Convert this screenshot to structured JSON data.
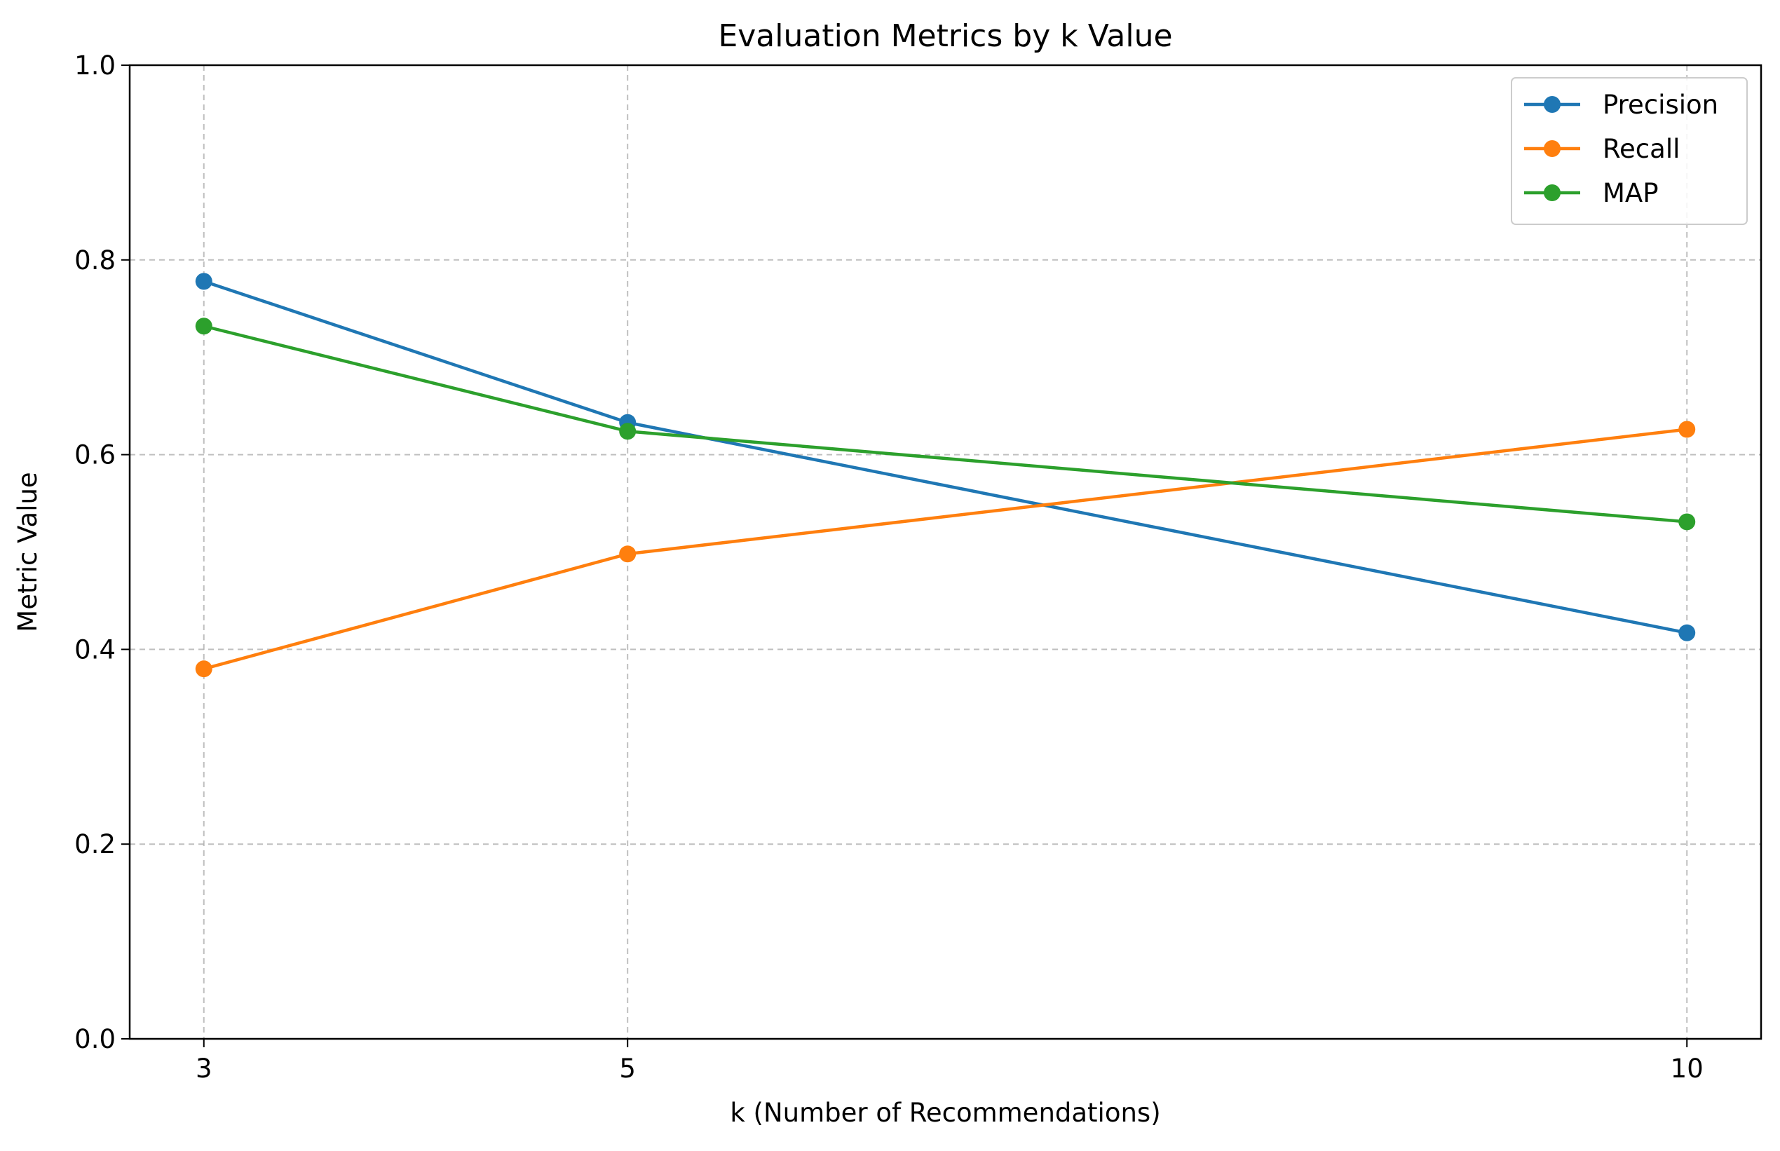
{
  "chart_data": {
    "type": "line",
    "title": "Evaluation Metrics by k Value",
    "xlabel": "k (Number of Recommendations)",
    "ylabel": "Metric Value",
    "x": [
      3,
      5,
      10
    ],
    "x_ticks": [
      "3",
      "5",
      "10"
    ],
    "xlim": [
      2.65,
      10.35
    ],
    "ylim": [
      0,
      1.0
    ],
    "y_ticks": [
      "0.0",
      "0.2",
      "0.4",
      "0.6",
      "0.8",
      "1.0"
    ],
    "grid": true,
    "legend_position": "top-right",
    "series": [
      {
        "name": "Precision",
        "color": "#1f77b4",
        "marker": "circle",
        "values": [
          0.778,
          0.633,
          0.417
        ]
      },
      {
        "name": "Recall",
        "color": "#ff7f0e",
        "marker": "circle",
        "values": [
          0.38,
          0.498,
          0.626
        ]
      },
      {
        "name": "MAP",
        "color": "#2ca02c",
        "marker": "circle",
        "values": [
          0.732,
          0.624,
          0.531
        ]
      }
    ]
  }
}
